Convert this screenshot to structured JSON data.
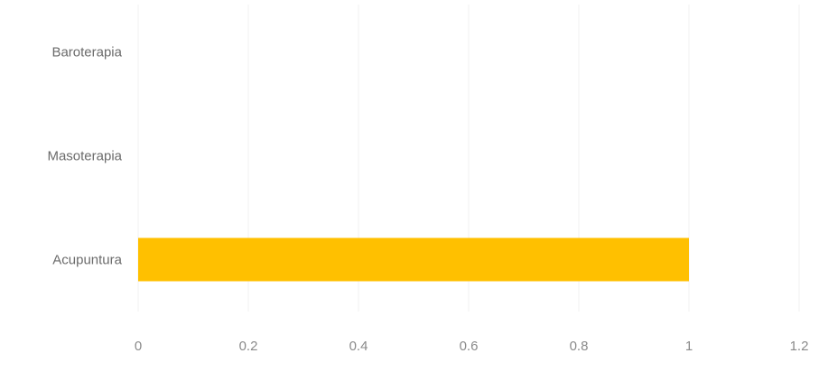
{
  "chart_data": {
    "type": "bar",
    "orientation": "horizontal",
    "categories": [
      "Acupuntura",
      "Masoterapia",
      "Baroterapia"
    ],
    "values": [
      1,
      0,
      0
    ],
    "xlim": [
      0,
      1.2
    ],
    "xticks": [
      "0",
      "0.2",
      "0.4",
      "0.6",
      "0.8",
      "1",
      "1.2"
    ],
    "title": "",
    "xlabel": "",
    "ylabel": "",
    "grid": true,
    "legend": "none",
    "bar_color": "#ffc000"
  }
}
